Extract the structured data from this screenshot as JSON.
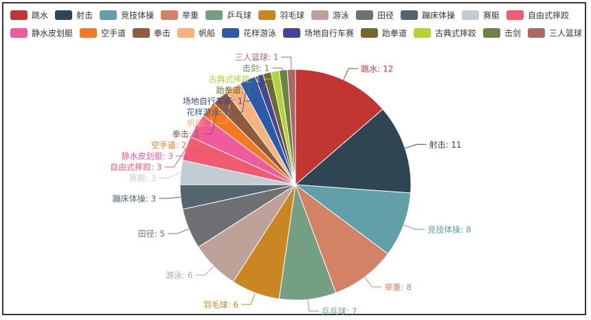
{
  "chart_data": {
    "type": "pie",
    "legend_position": "top",
    "categories": [
      "跳水",
      "射击",
      "竞技体操",
      "举重",
      "乒乓球",
      "羽毛球",
      "游泳",
      "田径",
      "蹦床体操",
      "赛艇",
      "自由式摔跤",
      "静水皮划艇",
      "空手道",
      "拳击",
      "帆船",
      "花样游泳",
      "场地自行车赛",
      "跆拳道",
      "古典式摔跤",
      "击剑",
      "三人篮球"
    ],
    "values": [
      12,
      11,
      8,
      8,
      7,
      6,
      6,
      5,
      3,
      3,
      3,
      3,
      2,
      2,
      2,
      2,
      1,
      1,
      1,
      1,
      1
    ],
    "colors": [
      "#c23531",
      "#2f4554",
      "#61a0a8",
      "#d48265",
      "#749f83",
      "#ca8622",
      "#bda29a",
      "#6e7074",
      "#546570",
      "#c4ccd3",
      "#f05b72",
      "#ef5b9c",
      "#f47920",
      "#905a3d",
      "#fab27b",
      "#2a5caa",
      "#444693",
      "#726930",
      "#b2d235",
      "#6d8346",
      "#ac6767"
    ]
  }
}
